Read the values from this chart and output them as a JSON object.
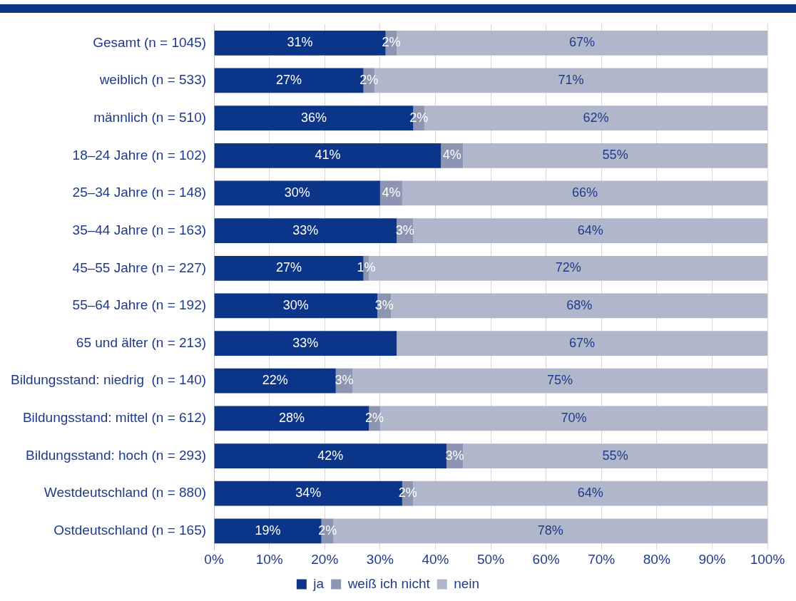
{
  "chart_data": {
    "type": "bar",
    "orientation": "horizontal",
    "stacked": true,
    "categories": [
      "Gesamt (n = 1045)",
      "weiblich (n = 533)",
      "männlich (n = 510)",
      "18–24 Jahre (n = 102)",
      "25–34 Jahre (n = 148)",
      "35–44 Jahre (n = 163)",
      "45–55 Jahre (n = 227)",
      "55–64 Jahre (n = 192)",
      "65 und älter (n = 213)",
      "Bildungsstand: niedrig  (n = 140)",
      "Bildungsstand: mittel (n = 612)",
      "Bildungsstand: hoch (n = 293)",
      "Westdeutschland (n = 880)",
      "Ostdeutschland (n = 165)"
    ],
    "series": [
      {
        "name": "ja",
        "color": "#0b3589",
        "values": [
          31,
          27,
          36,
          41,
          30,
          33,
          27,
          29.5,
          33,
          22,
          28,
          42,
          34,
          19.4
        ],
        "value_labels": [
          "31%",
          "27%",
          "36%",
          "41%",
          "30%",
          "33%",
          "27%",
          "30%",
          "33%",
          "22%",
          "28%",
          "42%",
          "34%",
          "19%"
        ]
      },
      {
        "name": "weiß ich nicht",
        "color": "#8c96b2",
        "values": [
          2,
          2,
          2,
          4,
          4,
          3,
          1,
          2.5,
          0,
          3,
          2,
          3,
          2,
          2.2
        ],
        "value_labels": [
          "2%",
          "2%",
          "2%",
          "4%",
          "4%",
          "3%",
          "1%",
          "3%",
          null,
          "3%",
          "2%",
          "3%",
          "2%",
          "2%"
        ]
      },
      {
        "name": "nein",
        "color": "#b1b7ca",
        "values": [
          67,
          71,
          62,
          55,
          66,
          64,
          72,
          68,
          67,
          75,
          70,
          55,
          64,
          78.4
        ],
        "value_labels": [
          "67%",
          "71%",
          "62%",
          "55%",
          "66%",
          "64%",
          "72%",
          "68%",
          "67%",
          "75%",
          "70%",
          "55%",
          "64%",
          "78%"
        ]
      }
    ],
    "xlim": [
      0,
      100
    ],
    "xticks": [
      {
        "value": 0,
        "label": "0%"
      },
      {
        "value": 10,
        "label": "10%"
      },
      {
        "value": 20,
        "label": "20%"
      },
      {
        "value": 30,
        "label": "30%"
      },
      {
        "value": 40,
        "label": "40%"
      },
      {
        "value": 50,
        "label": "50%"
      },
      {
        "value": 60,
        "label": "60%"
      },
      {
        "value": 70,
        "label": "70%"
      },
      {
        "value": 80,
        "label": "80%"
      },
      {
        "value": 90,
        "label": "90%"
      },
      {
        "value": 100,
        "label": "100%"
      }
    ],
    "grid": "x",
    "legend": "bottom"
  }
}
